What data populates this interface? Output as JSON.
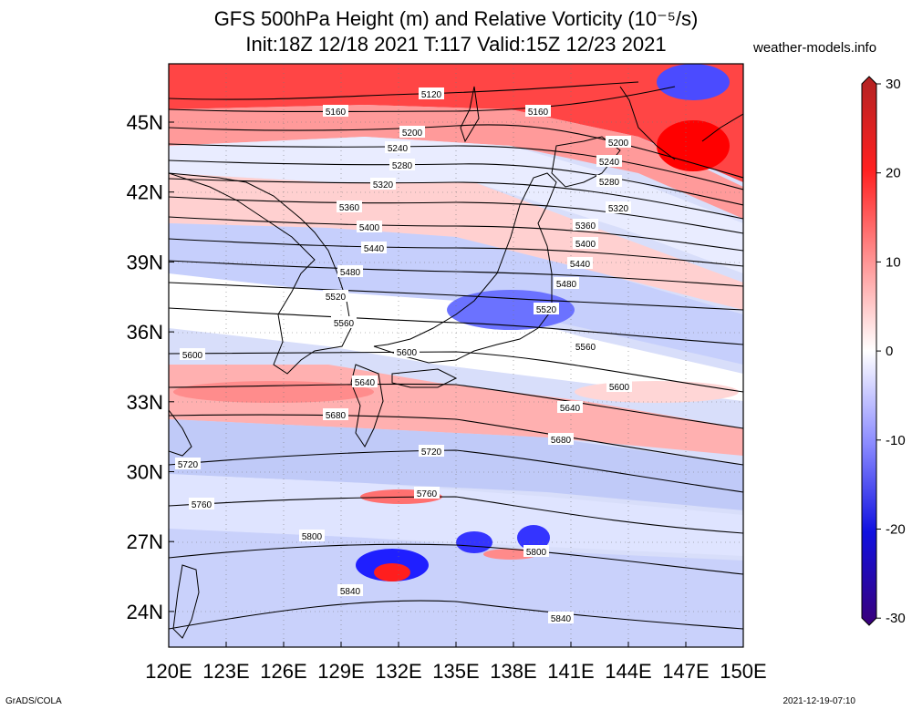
{
  "title_line1": "GFS 500hPa Height (m) and Relative Vorticity (10⁻⁵/s)",
  "title_line2": "Init:18Z 12/18 2021 T:117 Valid:15Z 12/23 2021",
  "site": "weather-models.info",
  "footer_left": "GrADS/COLA",
  "footer_right": "2021-12-19-07:10",
  "lon_labels": [
    "120E",
    "123E",
    "126E",
    "129E",
    "132E",
    "135E",
    "138E",
    "141E",
    "144E",
    "147E",
    "150E"
  ],
  "lat_labels": [
    "45N",
    "42N",
    "39N",
    "36N",
    "33N",
    "30N",
    "27N",
    "24N"
  ],
  "colorbar": {
    "ticks": [
      "30",
      "20",
      "10",
      "0",
      "-10",
      "-20",
      "-30"
    ],
    "colors": [
      "#b22222",
      "#ff0000",
      "#ff8080",
      "#ffffff",
      "#8080ff",
      "#0000ff",
      "#3a007a"
    ]
  },
  "contour_labels": [
    "5120",
    "5160",
    "5160",
    "5200",
    "5200",
    "5240",
    "5240",
    "5280",
    "5280",
    "5320",
    "5320",
    "5360",
    "5360",
    "5400",
    "5400",
    "5440",
    "5440",
    "5480",
    "5480",
    "5520",
    "5520",
    "5560",
    "5560",
    "5600",
    "5600",
    "5600",
    "5640",
    "5640",
    "5680",
    "5680",
    "5720",
    "5720",
    "5760",
    "5760",
    "5800",
    "5800",
    "5840",
    "5840"
  ]
}
